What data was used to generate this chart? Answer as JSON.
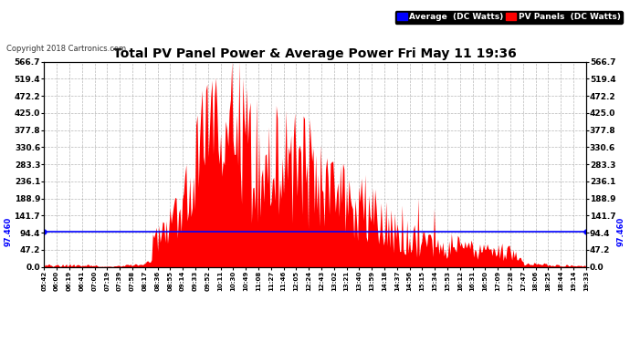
{
  "title": "Total PV Panel Power & Average Power Fri May 11 19:36",
  "copyright": "Copyright 2018 Cartronics.com",
  "avg_value": 97.46,
  "avg_label": "97.460",
  "y_ticks": [
    0.0,
    47.2,
    94.4,
    141.7,
    188.9,
    236.1,
    283.3,
    330.6,
    377.8,
    425.0,
    472.2,
    519.4,
    566.7
  ],
  "ylim": [
    0.0,
    566.7
  ],
  "title_color": "#000000",
  "bg_color": "#ffffff",
  "fill_color": "#ff0000",
  "avg_line_color": "#0000ff",
  "grid_color": "#888888",
  "legend_avg_bg": "#0000ff",
  "legend_pv_bg": "#ff0000",
  "legend_avg_text": "Average  (DC Watts)",
  "legend_pv_text": "PV Panels  (DC Watts)",
  "x_labels": [
    "05:42",
    "06:00",
    "06:19",
    "06:41",
    "07:00",
    "07:19",
    "07:39",
    "07:58",
    "08:17",
    "08:36",
    "08:55",
    "09:14",
    "09:33",
    "09:52",
    "10:11",
    "10:30",
    "10:49",
    "11:08",
    "11:27",
    "11:46",
    "12:05",
    "12:24",
    "12:43",
    "13:02",
    "13:21",
    "13:40",
    "13:59",
    "14:18",
    "14:37",
    "14:56",
    "15:15",
    "15:34",
    "15:53",
    "16:12",
    "16:31",
    "16:50",
    "17:09",
    "17:28",
    "17:47",
    "18:06",
    "18:25",
    "18:44",
    "19:14",
    "19:33"
  ]
}
